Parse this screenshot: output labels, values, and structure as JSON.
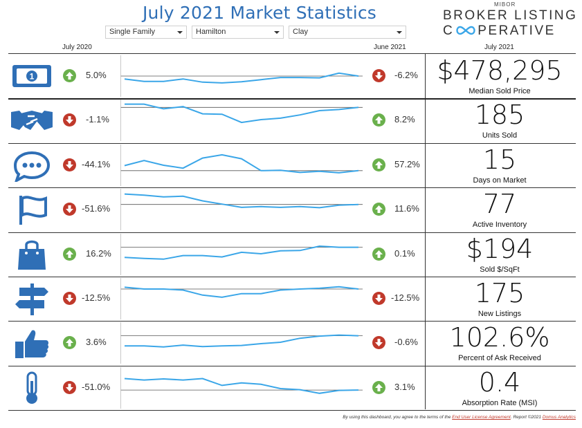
{
  "header": {
    "title": "July 2021 Market Statistics",
    "filters": [
      "Single Family",
      "Hamilton",
      "Clay"
    ],
    "logo_small": "MIBOR",
    "logo_line1": "BROKER LISTING",
    "logo_line2": "C",
    "logo_line2_rest": "PERATIVE"
  },
  "columns": {
    "left": "July 2020",
    "mid": "June 2021",
    "right": "July 2021"
  },
  "colors": {
    "line": "#3aa6e8",
    "ref": "#555555",
    "up": "#6ab04c",
    "down": "#c0392b",
    "icon": "#2f6fb6"
  },
  "chart_data": [
    {
      "type": "line",
      "title": "Median Sold Price",
      "value": "$478,295",
      "yoy": "5.0%",
      "yoy_dir": "up",
      "mom": "-6.2%",
      "mom_dir": "down",
      "icon": "money-icon",
      "values": [
        0.42,
        0.35,
        0.35,
        0.42,
        0.33,
        0.31,
        0.34,
        0.4,
        0.46,
        0.46,
        0.45,
        0.58,
        0.5
      ],
      "ref": 0.5
    },
    {
      "type": "line",
      "title": "Units Sold",
      "value": "185",
      "yoy": "-1.1%",
      "yoy_dir": "down",
      "mom": "8.2%",
      "mom_dir": "up",
      "icon": "handshake-icon",
      "values": [
        0.95,
        0.95,
        0.82,
        0.88,
        0.68,
        0.67,
        0.44,
        0.52,
        0.56,
        0.65,
        0.77,
        0.8,
        0.86
      ],
      "ref": 0.86
    },
    {
      "type": "line",
      "title": "Days on Market",
      "value": "15",
      "yoy": "-44.1%",
      "yoy_dir": "down",
      "mom": "57.2%",
      "mom_dir": "up",
      "icon": "chat-icon",
      "values": [
        0.49,
        0.63,
        0.5,
        0.42,
        0.7,
        0.79,
        0.68,
        0.35,
        0.36,
        0.3,
        0.33,
        0.29,
        0.35
      ],
      "ref": 0.35
    },
    {
      "type": "line",
      "title": "Active Inventory",
      "value": "77",
      "yoy": "-51.6%",
      "yoy_dir": "down",
      "mom": "11.6%",
      "mom_dir": "up",
      "icon": "flag-icon",
      "values": [
        0.93,
        0.9,
        0.85,
        0.87,
        0.74,
        0.65,
        0.56,
        0.58,
        0.56,
        0.58,
        0.55,
        0.62,
        0.64
      ],
      "ref": 0.64
    },
    {
      "type": "line",
      "title": "Sold $/SqFt",
      "value": "$194",
      "yoy": "16.2%",
      "yoy_dir": "up",
      "mom": "0.1%",
      "mom_dir": "up",
      "icon": "bag-icon",
      "values": [
        0.42,
        0.39,
        0.37,
        0.47,
        0.47,
        0.43,
        0.56,
        0.52,
        0.6,
        0.61,
        0.73,
        0.7,
        0.7
      ],
      "ref": 0.7
    },
    {
      "type": "line",
      "title": "New Listings",
      "value": "175",
      "yoy": "-12.5%",
      "yoy_dir": "down",
      "mom": "-12.5%",
      "mom_dir": "down",
      "icon": "signpost-icon",
      "values": [
        0.82,
        0.77,
        0.77,
        0.74,
        0.6,
        0.54,
        0.64,
        0.64,
        0.74,
        0.77,
        0.79,
        0.83,
        0.77
      ],
      "ref": 0.77
    },
    {
      "type": "line",
      "title": "Percent of Ask Received",
      "value": "102.6%",
      "yoy": "3.6%",
      "yoy_dir": "up",
      "mom": "-0.6%",
      "mom_dir": "down",
      "icon": "thumbs-up-icon",
      "values": [
        0.42,
        0.42,
        0.39,
        0.44,
        0.4,
        0.42,
        0.43,
        0.48,
        0.52,
        0.63,
        0.69,
        0.72,
        0.7
      ],
      "ref": 0.7
    },
    {
      "type": "line",
      "title": "Absorption Rate (MSI)",
      "value": "0.4",
      "yoy": "-51.0%",
      "yoy_dir": "down",
      "mom": "3.1%",
      "mom_dir": "up",
      "icon": "thermometer-icon",
      "values": [
        0.76,
        0.72,
        0.75,
        0.72,
        0.76,
        0.57,
        0.64,
        0.6,
        0.48,
        0.45,
        0.35,
        0.43,
        0.44
      ],
      "ref": 0.44
    }
  ],
  "footer": {
    "prefix": "By using this dashboard, you agree to the terms of the ",
    "link1": "End User License Agreement",
    "middle": ".  Report ©2021 ",
    "link2": "Domus Analytics"
  }
}
